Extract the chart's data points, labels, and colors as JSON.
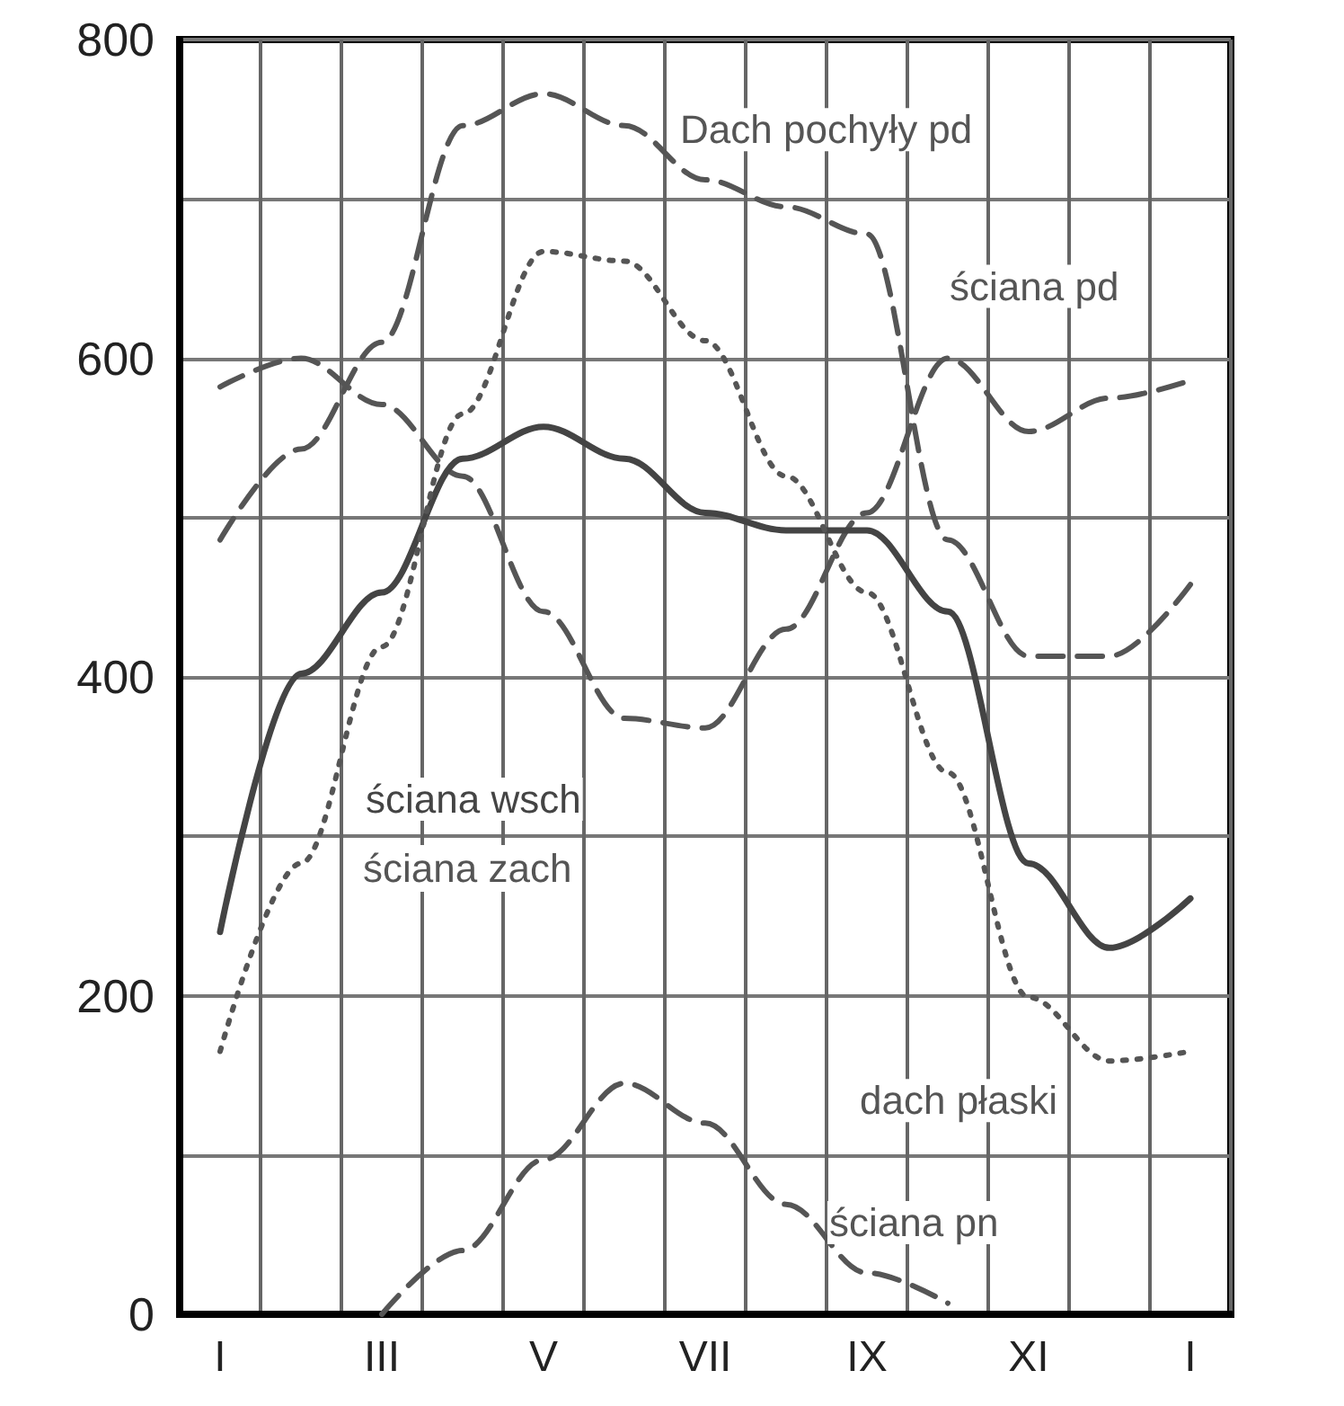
{
  "chart_data": {
    "type": "line",
    "categories": [
      "I",
      null,
      "III",
      null,
      "V",
      null,
      "VII",
      null,
      "IX",
      null,
      "XI",
      null,
      "I"
    ],
    "series": [
      {
        "name": "Dach pochyły pd",
        "color": "#555555",
        "line_style": "dashed",
        "values": [
          486,
          543,
          610,
          746,
          766,
          746,
          712,
          695,
          678,
          486,
          413,
          413,
          458
        ]
      },
      {
        "name": "ściana pd",
        "color": "#555555",
        "line_style": "dashed",
        "values": [
          582,
          600,
          571,
          526,
          441,
          374,
          368,
          430,
          503,
          600,
          554,
          575,
          586
        ]
      },
      {
        "name": "ściana wsch",
        "color": "#444444",
        "line_style": "solid",
        "values": [
          240,
          402,
          453,
          537,
          557,
          537,
          503,
          492,
          492,
          441,
          283,
          230,
          261
        ]
      },
      {
        "name": "dach płaski",
        "color": "#555555",
        "line_style": "dotted",
        "values": [
          165,
          283,
          419,
          565,
          667,
          661,
          611,
          526,
          453,
          340,
          199,
          159,
          165
        ]
      },
      {
        "name": "ściana pn",
        "color": "#555555",
        "line_style": "dashed",
        "values": [
          null,
          null,
          0,
          40,
          97,
          145,
          120,
          69,
          26,
          7,
          null,
          null,
          null
        ]
      }
    ],
    "annotations": [
      "ściana zach"
    ],
    "ylim": [
      0,
      800
    ],
    "yticks": [
      0,
      {
        "value": 100,
        "label": null
      },
      200,
      {
        "value": 300,
        "label": null
      },
      400,
      {
        "value": 500,
        "label": null
      },
      600,
      {
        "value": 700,
        "label": null
      },
      800
    ],
    "grid": true,
    "legend": false,
    "marker": "none"
  }
}
